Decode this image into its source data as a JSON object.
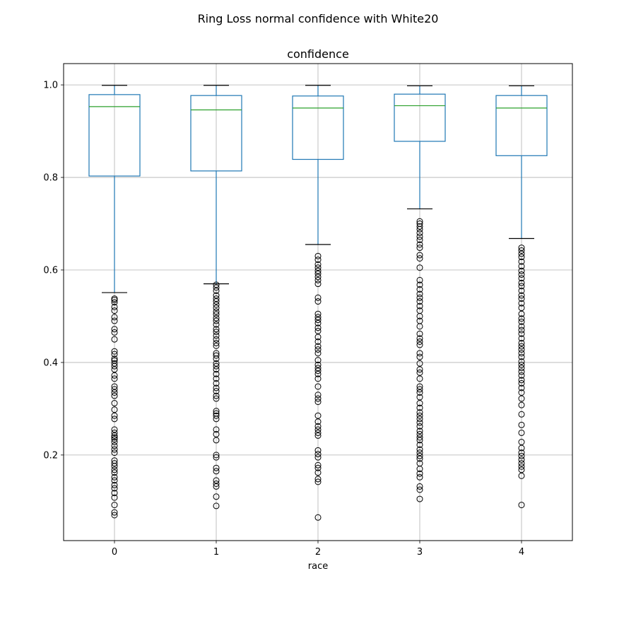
{
  "chart_data": {
    "type": "box",
    "title": "Ring Loss normal confidence with White20",
    "subtitle": "confidence",
    "xlabel": "race",
    "ylabel": "",
    "ylim": [
      0.015,
      1.046
    ],
    "yticks": [
      0.2,
      0.4,
      0.6,
      0.8,
      1.0
    ],
    "ytick_labels": [
      "0.2",
      "0.4",
      "0.6",
      "0.8",
      "1.0"
    ],
    "grid": true,
    "colors": {
      "box": "#1f77b4",
      "median": "#2ca02c",
      "whisker": "#1f77b4",
      "cap": "#000000",
      "flier": "#000000",
      "grid": "#b0b0b0"
    },
    "categories": [
      "0",
      "1",
      "2",
      "3",
      "4"
    ],
    "boxes": [
      {
        "category": "0",
        "whislo": 0.551,
        "q1": 0.803,
        "median": 0.953,
        "q3": 0.979,
        "whishi": 0.999,
        "fliers": [
          0.538,
          0.535,
          0.53,
          0.52,
          0.512,
          0.498,
          0.49,
          0.472,
          0.465,
          0.45,
          0.424,
          0.418,
          0.408,
          0.404,
          0.398,
          0.392,
          0.385,
          0.372,
          0.365,
          0.348,
          0.342,
          0.335,
          0.328,
          0.312,
          0.298,
          0.285,
          0.278,
          0.255,
          0.248,
          0.242,
          0.238,
          0.234,
          0.228,
          0.22,
          0.212,
          0.205,
          0.188,
          0.182,
          0.176,
          0.168,
          0.162,
          0.152,
          0.145,
          0.135,
          0.128,
          0.118,
          0.108,
          0.092,
          0.076,
          0.07
        ]
      },
      {
        "category": "1",
        "whislo": 0.57,
        "q1": 0.814,
        "median": 0.946,
        "q3": 0.977,
        "whishi": 0.999,
        "fliers": [
          0.568,
          0.562,
          0.555,
          0.545,
          0.538,
          0.532,
          0.525,
          0.518,
          0.51,
          0.504,
          0.496,
          0.49,
          0.482,
          0.472,
          0.466,
          0.458,
          0.45,
          0.442,
          0.436,
          0.42,
          0.415,
          0.408,
          0.398,
          0.392,
          0.385,
          0.375,
          0.365,
          0.355,
          0.345,
          0.338,
          0.328,
          0.322,
          0.295,
          0.29,
          0.285,
          0.278,
          0.255,
          0.245,
          0.232,
          0.2,
          0.195,
          0.172,
          0.165,
          0.145,
          0.138,
          0.132,
          0.11,
          0.09
        ]
      },
      {
        "category": "2",
        "whislo": 0.655,
        "q1": 0.839,
        "median": 0.95,
        "q3": 0.976,
        "whishi": 0.999,
        "fliers": [
          0.63,
          0.622,
          0.612,
          0.605,
          0.598,
          0.592,
          0.585,
          0.578,
          0.57,
          0.54,
          0.532,
          0.505,
          0.498,
          0.492,
          0.485,
          0.475,
          0.468,
          0.455,
          0.445,
          0.435,
          0.428,
          0.42,
          0.405,
          0.395,
          0.388,
          0.382,
          0.375,
          0.365,
          0.348,
          0.33,
          0.322,
          0.315,
          0.285,
          0.272,
          0.262,
          0.255,
          0.248,
          0.242,
          0.21,
          0.202,
          0.195,
          0.178,
          0.172,
          0.162,
          0.148,
          0.142,
          0.065
        ]
      },
      {
        "category": "3",
        "whislo": 0.732,
        "q1": 0.878,
        "median": 0.955,
        "q3": 0.98,
        "whishi": 0.998,
        "fliers": [
          0.705,
          0.7,
          0.694,
          0.688,
          0.68,
          0.672,
          0.665,
          0.655,
          0.648,
          0.632,
          0.625,
          0.605,
          0.578,
          0.568,
          0.558,
          0.548,
          0.54,
          0.532,
          0.522,
          0.512,
          0.5,
          0.49,
          0.478,
          0.462,
          0.452,
          0.445,
          0.438,
          0.42,
          0.412,
          0.398,
          0.385,
          0.378,
          0.365,
          0.348,
          0.342,
          0.335,
          0.325,
          0.312,
          0.302,
          0.292,
          0.285,
          0.278,
          0.27,
          0.262,
          0.252,
          0.245,
          0.238,
          0.232,
          0.222,
          0.212,
          0.205,
          0.198,
          0.192,
          0.182,
          0.17,
          0.16,
          0.152,
          0.132,
          0.125,
          0.105
        ]
      },
      {
        "category": "4",
        "whislo": 0.668,
        "q1": 0.847,
        "median": 0.95,
        "q3": 0.977,
        "whishi": 0.998,
        "fliers": [
          0.648,
          0.642,
          0.635,
          0.628,
          0.618,
          0.608,
          0.598,
          0.59,
          0.582,
          0.572,
          0.565,
          0.555,
          0.545,
          0.538,
          0.528,
          0.518,
          0.505,
          0.495,
          0.488,
          0.478,
          0.47,
          0.462,
          0.452,
          0.442,
          0.435,
          0.428,
          0.42,
          0.412,
          0.402,
          0.395,
          0.388,
          0.38,
          0.372,
          0.362,
          0.355,
          0.345,
          0.335,
          0.322,
          0.308,
          0.288,
          0.265,
          0.248,
          0.228,
          0.215,
          0.205,
          0.198,
          0.19,
          0.182,
          0.175,
          0.168,
          0.155,
          0.092
        ]
      }
    ]
  }
}
